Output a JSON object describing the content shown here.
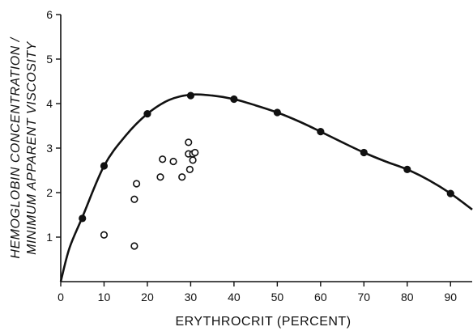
{
  "chart_data": {
    "type": "scatter",
    "title": "",
    "xlabel": "ERYTHROCRIT (PERCENT)",
    "ylabel_lines": [
      "HEMOGLOBIN CONCENTRATION /",
      "MINIMUM APPARENT VISCOSITY"
    ],
    "xlim": [
      0,
      95
    ],
    "ylim": [
      0,
      6
    ],
    "x_ticks": [
      0,
      10,
      20,
      30,
      40,
      50,
      60,
      70,
      80,
      90
    ],
    "y_ticks": [
      1,
      2,
      3,
      4,
      5,
      6
    ],
    "grid": false,
    "legend": "none",
    "series": [
      {
        "marker": "filled-circle",
        "fitted_curve": true,
        "points": [
          [
            5,
            1.42
          ],
          [
            10,
            2.6
          ],
          [
            20,
            3.77
          ],
          [
            30,
            4.18
          ],
          [
            40,
            4.1
          ],
          [
            50,
            3.8
          ],
          [
            60,
            3.37
          ],
          [
            70,
            2.9
          ],
          [
            80,
            2.52
          ],
          [
            90,
            1.98
          ]
        ]
      },
      {
        "marker": "open-circle",
        "points": [
          [
            10,
            1.05
          ],
          [
            17,
            0.8
          ],
          [
            17,
            1.85
          ],
          [
            17.5,
            2.2
          ],
          [
            23,
            2.35
          ],
          [
            23.5,
            2.75
          ],
          [
            26,
            2.7
          ],
          [
            28,
            2.35
          ],
          [
            29.5,
            3.13
          ],
          [
            29.5,
            2.87
          ],
          [
            29.8,
            2.52
          ],
          [
            30.5,
            2.87
          ],
          [
            30.5,
            2.73
          ],
          [
            31,
            2.9
          ]
        ]
      }
    ],
    "curve_points": [
      [
        0,
        0
      ],
      [
        2,
        0.75
      ],
      [
        5,
        1.45
      ],
      [
        10,
        2.6
      ],
      [
        15,
        3.28
      ],
      [
        20,
        3.77
      ],
      [
        25,
        4.08
      ],
      [
        30,
        4.2
      ],
      [
        35,
        4.18
      ],
      [
        40,
        4.1
      ],
      [
        45,
        3.96
      ],
      [
        50,
        3.8
      ],
      [
        55,
        3.6
      ],
      [
        60,
        3.37
      ],
      [
        65,
        3.13
      ],
      [
        70,
        2.9
      ],
      [
        75,
        2.7
      ],
      [
        80,
        2.52
      ],
      [
        85,
        2.28
      ],
      [
        90,
        1.98
      ],
      [
        95,
        1.62
      ]
    ],
    "colors": {
      "ink": "#111111",
      "background": "#ffffff"
    }
  }
}
